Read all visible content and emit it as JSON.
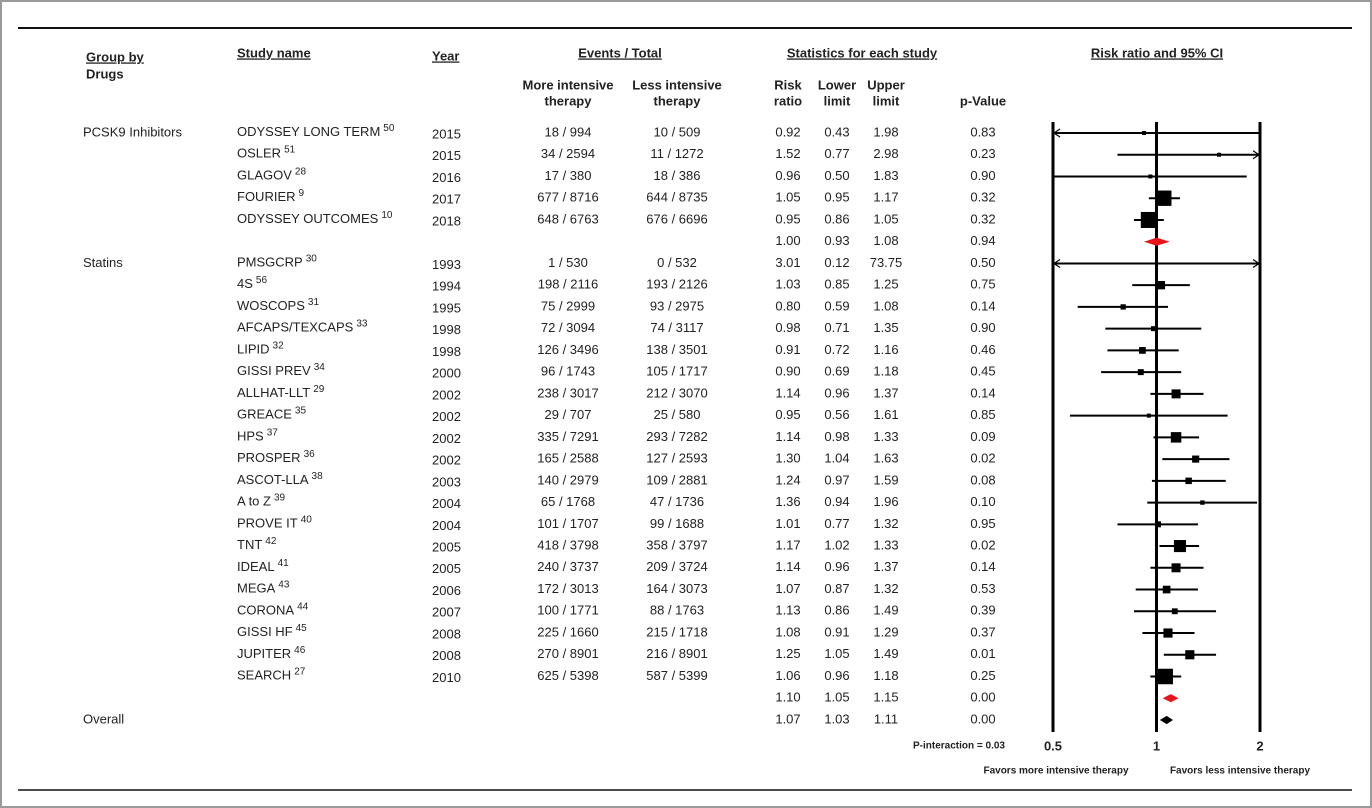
{
  "chart_data": {
    "type": "forest",
    "headers": {
      "group_by": "Group by",
      "drugs": "Drugs",
      "study_name": "Study name",
      "year": "Year",
      "events_total": "Events / Total",
      "more_intensive": [
        "More intensive",
        "therapy"
      ],
      "less_intensive": [
        "Less intensive",
        "therapy"
      ],
      "statistics": "Statistics for each study",
      "risk_ratio": [
        "Risk",
        "ratio"
      ],
      "lower_limit": [
        "Lower",
        "limit"
      ],
      "upper_limit": [
        "Upper",
        "limit"
      ],
      "p_value": "p-Value",
      "plot_title": "Risk ratio and 95% CI"
    },
    "groups": [
      {
        "name": "PCSK9 Inhibitors",
        "studies": [
          {
            "name": "ODYSSEY LONG TERM",
            "ref": "50",
            "year": 2015,
            "events_more": "18 / 994",
            "events_less": "10 / 509",
            "rr": 0.92,
            "rr_label": "0.92",
            "lower": 0.43,
            "lower_label": "0.43",
            "upper": 1.98,
            "upper_label": "1.98",
            "p": "0.83"
          },
          {
            "name": "OSLER",
            "ref": "51",
            "year": 2015,
            "events_more": "34 / 2594",
            "events_less": "11 / 1272",
            "rr": 1.52,
            "rr_label": "1.52",
            "lower": 0.77,
            "lower_label": "0.77",
            "upper": 2.98,
            "upper_label": "2.98",
            "p": "0.23"
          },
          {
            "name": "GLAGOV",
            "ref": "28",
            "year": 2016,
            "events_more": "17 / 380",
            "events_less": "18 / 386",
            "rr": 0.96,
            "rr_label": "0.96",
            "lower": 0.5,
            "lower_label": "0.50",
            "upper": 1.83,
            "upper_label": "1.83",
            "p": "0.90"
          },
          {
            "name": "FOURIER",
            "ref": "9",
            "year": 2017,
            "events_more": "677 / 8716",
            "events_less": "644 / 8735",
            "rr": 1.05,
            "rr_label": "1.05",
            "lower": 0.95,
            "lower_label": "0.95",
            "upper": 1.17,
            "upper_label": "1.17",
            "p": "0.32"
          },
          {
            "name": "ODYSSEY OUTCOMES",
            "ref": "10",
            "year": 2018,
            "events_more": "648 / 6763",
            "events_less": "676 / 6696",
            "rr": 0.95,
            "rr_label": "0.95",
            "lower": 0.86,
            "lower_label": "0.86",
            "upper": 1.05,
            "upper_label": "1.05",
            "p": "0.32"
          }
        ],
        "subtotal": {
          "rr": 1.0,
          "rr_label": "1.00",
          "lower": 0.93,
          "lower_label": "0.93",
          "upper": 1.08,
          "upper_label": "1.08",
          "p": "0.94"
        }
      },
      {
        "name": "Statins",
        "studies": [
          {
            "name": "PMSGCRP",
            "ref": "30",
            "year": 1993,
            "events_more": "1 / 530",
            "events_less": "0 / 532",
            "rr": 3.01,
            "rr_label": "3.01",
            "lower": 0.12,
            "lower_label": "0.12",
            "upper": 73.75,
            "upper_label": "73.75",
            "p": "0.50"
          },
          {
            "name": "4S",
            "ref": "56",
            "year": 1994,
            "events_more": "198 / 2116",
            "events_less": "193 / 2126",
            "rr": 1.03,
            "rr_label": "1.03",
            "lower": 0.85,
            "lower_label": "0.85",
            "upper": 1.25,
            "upper_label": "1.25",
            "p": "0.75"
          },
          {
            "name": "WOSCOPS",
            "ref": "31",
            "year": 1995,
            "events_more": "75 / 2999",
            "events_less": "93 / 2975",
            "rr": 0.8,
            "rr_label": "0.80",
            "lower": 0.59,
            "lower_label": "0.59",
            "upper": 1.08,
            "upper_label": "1.08",
            "p": "0.14"
          },
          {
            "name": "AFCAPS/TEXCAPS",
            "ref": "33",
            "year": 1998,
            "events_more": "72 / 3094",
            "events_less": "74 / 3117",
            "rr": 0.98,
            "rr_label": "0.98",
            "lower": 0.71,
            "lower_label": "0.71",
            "upper": 1.35,
            "upper_label": "1.35",
            "p": "0.90"
          },
          {
            "name": "LIPID",
            "ref": "32",
            "year": 1998,
            "events_more": "126 / 3496",
            "events_less": "138 / 3501",
            "rr": 0.91,
            "rr_label": "0.91",
            "lower": 0.72,
            "lower_label": "0.72",
            "upper": 1.16,
            "upper_label": "1.16",
            "p": "0.46"
          },
          {
            "name": "GISSI PREV",
            "ref": "34",
            "year": 2000,
            "events_more": "96 / 1743",
            "events_less": "105 / 1717",
            "rr": 0.9,
            "rr_label": "0.90",
            "lower": 0.69,
            "lower_label": "0.69",
            "upper": 1.18,
            "upper_label": "1.18",
            "p": "0.45"
          },
          {
            "name": "ALLHAT-LLT",
            "ref": "29",
            "year": 2002,
            "events_more": "238 / 3017",
            "events_less": "212 / 3070",
            "rr": 1.14,
            "rr_label": "1.14",
            "lower": 0.96,
            "lower_label": "0.96",
            "upper": 1.37,
            "upper_label": "1.37",
            "p": "0.14"
          },
          {
            "name": "GREACE",
            "ref": "35",
            "year": 2002,
            "events_more": "29 / 707",
            "events_less": "25 / 580",
            "rr": 0.95,
            "rr_label": "0.95",
            "lower": 0.56,
            "lower_label": "0.56",
            "upper": 1.61,
            "upper_label": "1.61",
            "p": "0.85"
          },
          {
            "name": "HPS",
            "ref": "37",
            "year": 2002,
            "events_more": "335 / 7291",
            "events_less": "293 / 7282",
            "rr": 1.14,
            "rr_label": "1.14",
            "lower": 0.98,
            "lower_label": "0.98",
            "upper": 1.33,
            "upper_label": "1.33",
            "p": "0.09"
          },
          {
            "name": "PROSPER",
            "ref": "36",
            "year": 2002,
            "events_more": "165 / 2588",
            "events_less": "127 / 2593",
            "rr": 1.3,
            "rr_label": "1.30",
            "lower": 1.04,
            "lower_label": "1.04",
            "upper": 1.63,
            "upper_label": "1.63",
            "p": "0.02"
          },
          {
            "name": "ASCOT-LLA",
            "ref": "38",
            "year": 2003,
            "events_more": "140 / 2979",
            "events_less": "109 / 2881",
            "rr": 1.24,
            "rr_label": "1.24",
            "lower": 0.97,
            "lower_label": "0.97",
            "upper": 1.59,
            "upper_label": "1.59",
            "p": "0.08"
          },
          {
            "name": "A to Z",
            "ref": "39",
            "year": 2004,
            "events_more": "65 / 1768",
            "events_less": "47 / 1736",
            "rr": 1.36,
            "rr_label": "1.36",
            "lower": 0.94,
            "lower_label": "0.94",
            "upper": 1.96,
            "upper_label": "1.96",
            "p": "0.10"
          },
          {
            "name": "PROVE IT",
            "ref": "40",
            "year": 2004,
            "events_more": "101 / 1707",
            "events_less": "99 / 1688",
            "rr": 1.01,
            "rr_label": "1.01",
            "lower": 0.77,
            "lower_label": "0.77",
            "upper": 1.32,
            "upper_label": "1.32",
            "p": "0.95"
          },
          {
            "name": "TNT",
            "ref": "42",
            "year": 2005,
            "events_more": "418 / 3798",
            "events_less": "358 / 3797",
            "rr": 1.17,
            "rr_label": "1.17",
            "lower": 1.02,
            "lower_label": "1.02",
            "upper": 1.33,
            "upper_label": "1.33",
            "p": "0.02"
          },
          {
            "name": "IDEAL",
            "ref": "41",
            "year": 2005,
            "events_more": "240 / 3737",
            "events_less": "209 / 3724",
            "rr": 1.14,
            "rr_label": "1.14",
            "lower": 0.96,
            "lower_label": "0.96",
            "upper": 1.37,
            "upper_label": "1.37",
            "p": "0.14"
          },
          {
            "name": "MEGA",
            "ref": "43",
            "year": 2006,
            "events_more": "172 / 3013",
            "events_less": "164 / 3073",
            "rr": 1.07,
            "rr_label": "1.07",
            "lower": 0.87,
            "lower_label": "0.87",
            "upper": 1.32,
            "upper_label": "1.32",
            "p": "0.53"
          },
          {
            "name": "CORONA",
            "ref": "44",
            "year": 2007,
            "events_more": "100 / 1771",
            "events_less": "88 / 1763",
            "rr": 1.13,
            "rr_label": "1.13",
            "lower": 0.86,
            "lower_label": "0.86",
            "upper": 1.49,
            "upper_label": "1.49",
            "p": "0.39"
          },
          {
            "name": "GISSI HF",
            "ref": "45",
            "year": 2008,
            "events_more": "225 / 1660",
            "events_less": "215 / 1718",
            "rr": 1.08,
            "rr_label": "1.08",
            "lower": 0.91,
            "lower_label": "0.91",
            "upper": 1.29,
            "upper_label": "1.29",
            "p": "0.37"
          },
          {
            "name": "JUPITER",
            "ref": "46",
            "year": 2008,
            "events_more": "270 / 8901",
            "events_less": "216 / 8901",
            "rr": 1.25,
            "rr_label": "1.25",
            "lower": 1.05,
            "lower_label": "1.05",
            "upper": 1.49,
            "upper_label": "1.49",
            "p": "0.01"
          },
          {
            "name": "SEARCH",
            "ref": "27",
            "year": 2010,
            "events_more": "625 / 5398",
            "events_less": "587 / 5399",
            "rr": 1.06,
            "rr_label": "1.06",
            "lower": 0.96,
            "lower_label": "0.96",
            "upper": 1.18,
            "upper_label": "1.18",
            "p": "0.25"
          }
        ],
        "subtotal": {
          "rr": 1.1,
          "rr_label": "1.10",
          "lower": 1.05,
          "lower_label": "1.05",
          "upper": 1.15,
          "upper_label": "1.15",
          "p": "0.00"
        }
      }
    ],
    "overall": {
      "name": "Overall",
      "rr": 1.07,
      "rr_label": "1.07",
      "lower": 1.03,
      "lower_label": "1.03",
      "upper": 1.11,
      "upper_label": "1.11",
      "p": "0.00"
    },
    "log_x": true,
    "xlim": [
      0.5,
      2
    ],
    "xticks": [
      0.5,
      1,
      2
    ],
    "p_interaction": "P-interaction = 0.03",
    "favors_left": "Favors more intensive therapy",
    "favors_right": "Favors less intensive therapy",
    "marker_color": "#000000",
    "subtotal_color": "#e8141b",
    "overall_color": "#000000"
  }
}
